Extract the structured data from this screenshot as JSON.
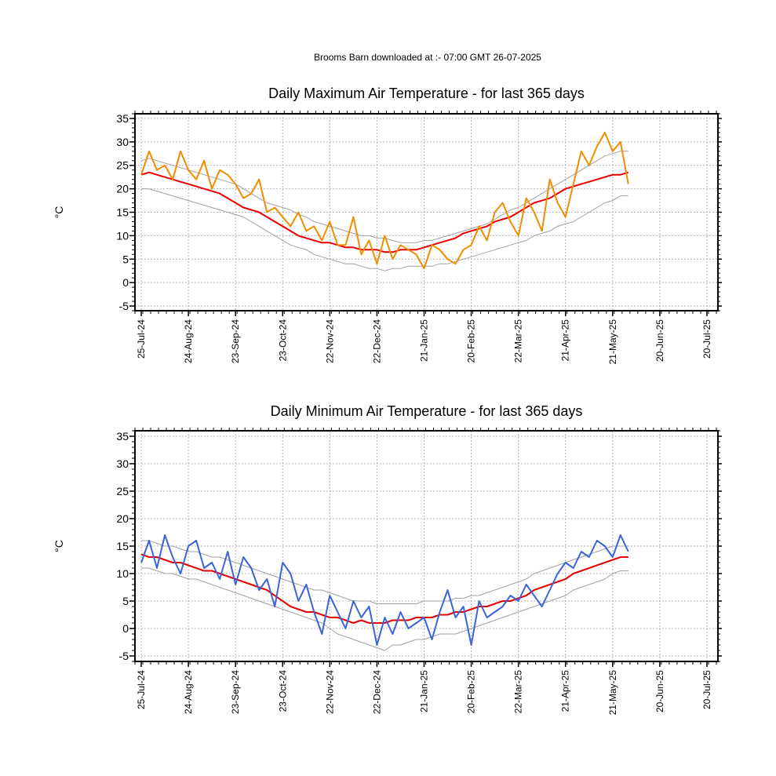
{
  "header": "Brooms Barn downloaded at :- 07:00 GMT 26-07-2025",
  "chart_data": [
    {
      "type": "line",
      "title": "Daily Maximum Air Temperature - for last 365 days",
      "ylabel": "°C",
      "ylim": [
        -6,
        36
      ],
      "yticks": [
        -5,
        0,
        5,
        10,
        15,
        20,
        25,
        30,
        35
      ],
      "xlim": [
        "2024-07-21",
        "2025-07-27"
      ],
      "xticks": [
        "25-Jul-24",
        "24-Aug-24",
        "23-Sep-24",
        "23-Oct-24",
        "22-Nov-24",
        "22-Dec-24",
        "21-Jan-25",
        "20-Feb-25",
        "22-Mar-25",
        "21-Apr-25",
        "21-May-25",
        "20-Jun-25",
        "20-Jul-25"
      ],
      "grid": true,
      "x_anchor": "2024-07-25",
      "x_step_days": 5,
      "series": [
        {
          "color": "#a0a0a0",
          "values": [
            26,
            26.5,
            26,
            25.5,
            25,
            24.5,
            24,
            23.5,
            23,
            22.5,
            22,
            21.5,
            21,
            20,
            19,
            18,
            17,
            16.5,
            16,
            15.5,
            14.5,
            14,
            13,
            12.5,
            12,
            11.5,
            11,
            10.5,
            10,
            10,
            9.5,
            9.5,
            9,
            8.5,
            8.5,
            8.5,
            9,
            9,
            9.5,
            10,
            10.5,
            11,
            11.5,
            12,
            12.5,
            13.5,
            14.5,
            15.5,
            16,
            17,
            18,
            19,
            20,
            21,
            22,
            23,
            24,
            25,
            26,
            27,
            27.5,
            28,
            28
          ]
        },
        {
          "color": "#a0a0a0",
          "values": [
            20,
            20,
            19.5,
            19,
            18.5,
            18,
            17.5,
            17,
            16.5,
            16,
            15.5,
            15,
            14.5,
            14,
            13,
            12,
            11,
            10,
            9,
            8,
            7.5,
            7,
            6,
            5.5,
            5,
            4.5,
            4,
            4,
            3.5,
            3,
            3,
            2.5,
            3,
            3,
            3.5,
            3.5,
            3.5,
            3.5,
            4,
            4,
            4.5,
            5,
            5.5,
            6,
            6.5,
            7,
            7.5,
            8,
            8.5,
            9,
            10,
            10.5,
            11,
            12,
            12.5,
            13,
            14,
            15,
            16,
            17,
            17.5,
            18.5,
            18.5
          ]
        },
        {
          "color": "#e60000",
          "values": [
            23,
            23.5,
            23,
            22.5,
            22,
            21.5,
            21,
            20.5,
            20,
            19.5,
            19,
            18,
            17,
            16,
            15.5,
            15,
            14,
            13,
            12,
            11,
            10,
            9.5,
            9,
            8.5,
            8.5,
            8,
            7.5,
            7.5,
            7,
            7,
            7,
            6.5,
            6.5,
            7,
            7,
            7,
            7.5,
            8,
            8.5,
            9,
            9.5,
            10.5,
            11,
            11.5,
            12,
            13,
            13.5,
            14,
            15,
            16,
            17,
            17.5,
            18,
            19,
            20,
            20.5,
            21,
            21.5,
            22,
            22.5,
            23,
            23,
            23.5
          ]
        },
        {
          "color": "#f28c00",
          "values": [
            23,
            28,
            24,
            25,
            22,
            28,
            24,
            22,
            26,
            20,
            24,
            23,
            21,
            18,
            19,
            22,
            15,
            16,
            14,
            12,
            15,
            11,
            12,
            9,
            13,
            8,
            8,
            14,
            6,
            9,
            4,
            10,
            5,
            8,
            7,
            6,
            3,
            8,
            7,
            5,
            4,
            7,
            8,
            12,
            9,
            15,
            17,
            13,
            10,
            18,
            15,
            11,
            22,
            17,
            14,
            21,
            28,
            25,
            29,
            32,
            28,
            30,
            21
          ]
        }
      ]
    },
    {
      "type": "line",
      "title": "Daily Minimum Air Temperature - for last 365 days",
      "ylabel": "°C",
      "ylim": [
        -6,
        36
      ],
      "yticks": [
        -5,
        0,
        5,
        10,
        15,
        20,
        25,
        30,
        35
      ],
      "xlim": [
        "2024-07-21",
        "2025-07-27"
      ],
      "xticks": [
        "25-Jul-24",
        "24-Aug-24",
        "23-Sep-24",
        "23-Oct-24",
        "22-Nov-24",
        "22-Dec-24",
        "21-Jan-25",
        "20-Feb-25",
        "22-Mar-25",
        "21-Apr-25",
        "21-May-25",
        "20-Jun-25",
        "20-Jul-25"
      ],
      "grid": true,
      "x_anchor": "2024-07-25",
      "x_step_days": 5,
      "series": [
        {
          "color": "#a0a0a0",
          "values": [
            16,
            16,
            15.5,
            15,
            15,
            14.5,
            14,
            14,
            13.5,
            13,
            13,
            12.5,
            12,
            11.5,
            11,
            10.5,
            10,
            9.5,
            9,
            8.5,
            8,
            7.5,
            7,
            7,
            6.5,
            6,
            5.5,
            5,
            5,
            5,
            4.5,
            4.5,
            4.5,
            4.5,
            4.5,
            4.5,
            5,
            5,
            5,
            5,
            5.5,
            5.5,
            6,
            6,
            6.5,
            7,
            7.5,
            8,
            8.5,
            9,
            10,
            10.5,
            11,
            11.5,
            12,
            12.5,
            13,
            13.5,
            14,
            14.5,
            15,
            15,
            15
          ]
        },
        {
          "color": "#a0a0a0",
          "values": [
            11,
            11,
            10.5,
            10,
            10,
            9.5,
            9,
            9,
            8.5,
            8,
            7.5,
            7,
            6.5,
            6,
            5.5,
            5,
            4.5,
            4,
            3.5,
            3,
            2.5,
            2,
            1.5,
            1,
            0,
            -1,
            -1.5,
            -2,
            -2.5,
            -3,
            -3.5,
            -4,
            -3,
            -3,
            -2.5,
            -2,
            -2,
            -1.5,
            -1,
            -1,
            -1,
            -0.5,
            0,
            0.5,
            1,
            1.5,
            2,
            2.5,
            3,
            3.5,
            4,
            4.5,
            5,
            5.5,
            6,
            7,
            7.5,
            8,
            8.5,
            9,
            10,
            10.5,
            10.5
          ]
        },
        {
          "color": "#e60000",
          "values": [
            13.5,
            13,
            13,
            12.5,
            12,
            12,
            11.5,
            11,
            10.5,
            10.5,
            10,
            9.5,
            9,
            8.5,
            8,
            7.5,
            7,
            6,
            5,
            4,
            3.5,
            3,
            3,
            2.5,
            2,
            2,
            1.5,
            1,
            1.5,
            1,
            1,
            1,
            1.5,
            1.5,
            1.5,
            2,
            2,
            2,
            2.5,
            2.5,
            3,
            3,
            3.5,
            4,
            4,
            4.5,
            5,
            5,
            5.5,
            6,
            7,
            7.5,
            8,
            8.5,
            9,
            10,
            10.5,
            11,
            11.5,
            12,
            12.5,
            13,
            13
          ]
        },
        {
          "color": "#3a64d8",
          "values": [
            12,
            16,
            11,
            17,
            13,
            10,
            15,
            16,
            11,
            12,
            9,
            14,
            8,
            13,
            11,
            7,
            9,
            4,
            12,
            10,
            5,
            8,
            3,
            -1,
            6,
            3,
            0,
            5,
            2,
            4,
            -3,
            2,
            -1,
            3,
            0,
            1,
            2,
            -2,
            3,
            7,
            2,
            4,
            -3,
            5,
            2,
            3,
            4,
            6,
            5,
            8,
            6,
            4,
            7,
            10,
            12,
            11,
            14,
            13,
            16,
            15,
            13,
            17,
            14
          ]
        }
      ]
    }
  ]
}
